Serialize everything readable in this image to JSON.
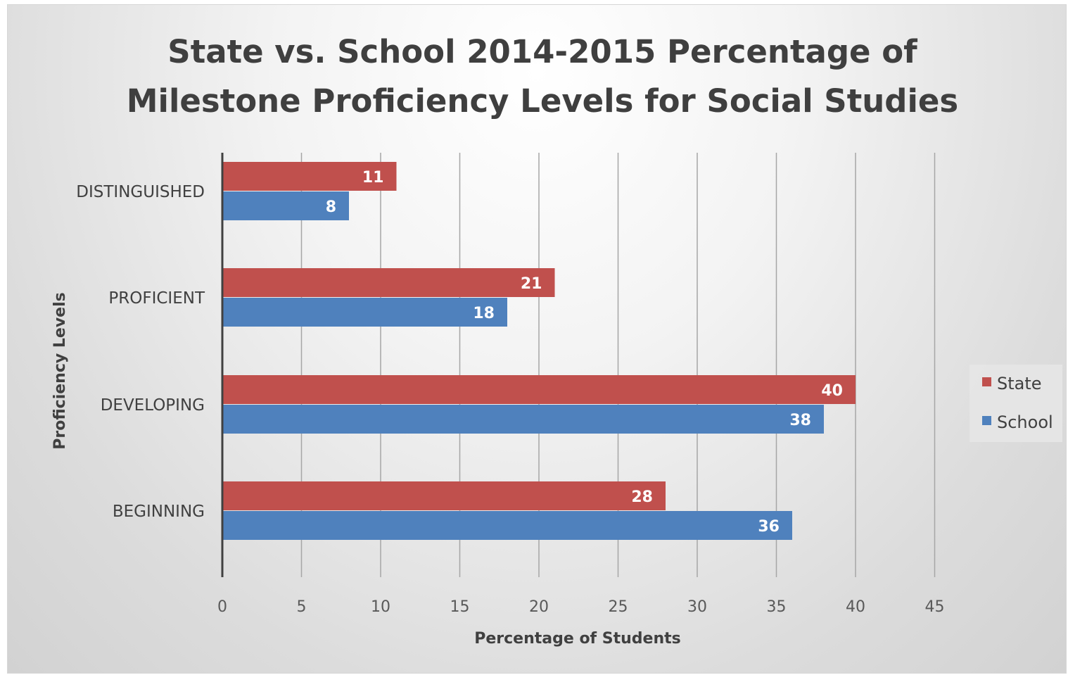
{
  "chart_data": {
    "type": "bar",
    "orientation": "horizontal",
    "title_lines": [
      "State vs. School 2014-2015 Percentage of",
      "Milestone Proficiency Levels for Social Studies"
    ],
    "xlabel": "Percentage of Students",
    "ylabel": "Proficiency Levels",
    "categories": [
      "DISTINGUISHED",
      "PROFICIENT",
      "DEVELOPING",
      "BEGINNING"
    ],
    "series": [
      {
        "name": "State",
        "color": "#c0504d",
        "values": [
          11,
          21,
          40,
          28
        ]
      },
      {
        "name": "School",
        "color": "#4f81bd",
        "values": [
          8,
          18,
          38,
          36
        ]
      }
    ],
    "xlim": [
      0,
      45
    ],
    "xticks": [
      0,
      5,
      10,
      15,
      20,
      25,
      30,
      35,
      40,
      45
    ],
    "grid": "vertical",
    "legend_position": "right",
    "data_labels": true
  }
}
